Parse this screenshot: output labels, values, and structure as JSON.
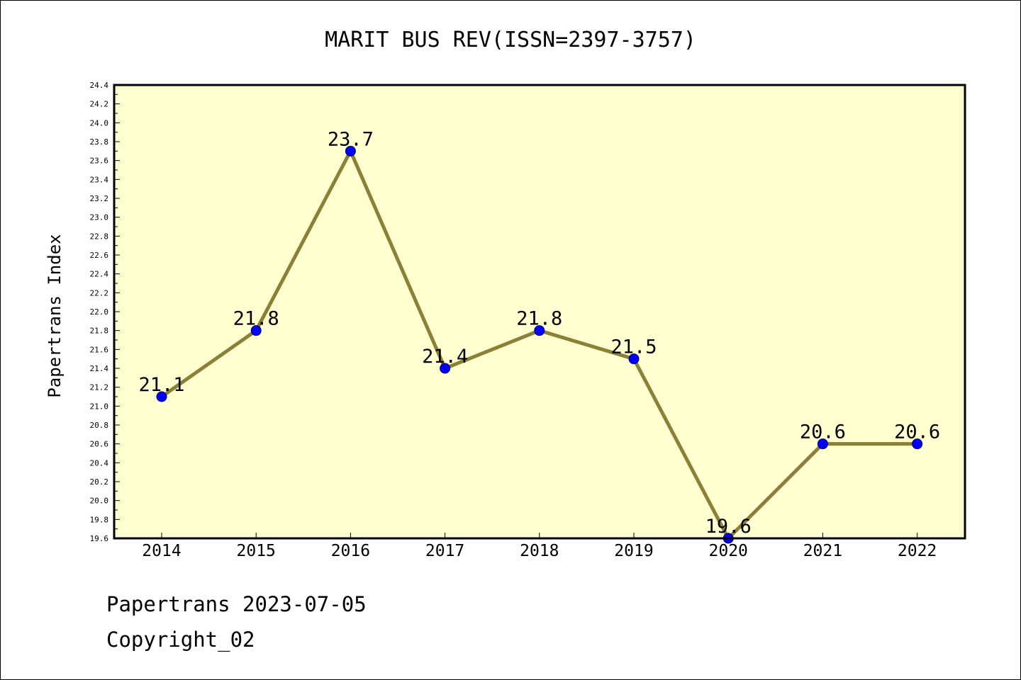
{
  "chart_data": {
    "type": "line",
    "title": "MARIT BUS REV(ISSN=2397-3757)",
    "xlabel": "",
    "ylabel": "Papertrans Index",
    "categories": [
      "2014",
      "2015",
      "2016",
      "2017",
      "2018",
      "2019",
      "2020",
      "2021",
      "2022"
    ],
    "series": [
      {
        "values": [
          21.1,
          21.8,
          23.7,
          21.4,
          21.8,
          21.5,
          19.6,
          20.6,
          20.6
        ],
        "data_labels": [
          "21.1",
          "21.8",
          "23.7",
          "21.4",
          "21.8",
          "21.5",
          "19.6",
          "20.6",
          "20.6"
        ]
      }
    ],
    "ylim": [
      19.6,
      24.4
    ],
    "y_ticks": [
      "19.6",
      "19.8",
      "20.0",
      "20.2",
      "20.4",
      "20.6",
      "20.8",
      "21.0",
      "21.2",
      "21.4",
      "21.6",
      "21.8",
      "22.0",
      "22.2",
      "22.4",
      "22.6",
      "22.8",
      "23.0",
      "23.2",
      "23.4",
      "23.6",
      "23.8",
      "24.0",
      "24.2",
      "24.4"
    ],
    "grid": false,
    "legend": "none",
    "colors": {
      "plot_background": "#ffffd0",
      "line": "#8b8035",
      "marker": "#0000ff",
      "axis": "#000000"
    }
  },
  "footer": {
    "date_line": "Papertrans 2023-07-05",
    "copyright": "Copyright_02"
  }
}
